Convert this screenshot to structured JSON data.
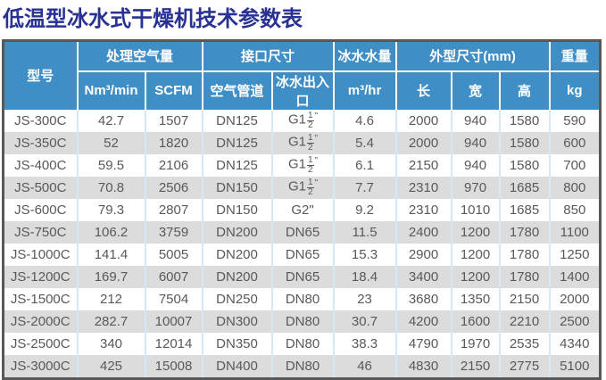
{
  "title": "低温型冰水式干燥机技术参数表",
  "colors": {
    "title_text": "#293293",
    "header_bg": "#3f8ec6",
    "header_text": "#ffffff",
    "row_alt_bg": "#dcdcdc",
    "cell_divider": "#d5e8f6",
    "outer_border": "#58585b",
    "data_text": "#58595b"
  },
  "chart_data": {
    "type": "table",
    "title": "低温型冰水式干燥机技术参数表",
    "header_groups": [
      {
        "label": "型号",
        "rowspan": 2
      },
      {
        "label": "处理空气量",
        "colspan": 2
      },
      {
        "label": "接口尺寸",
        "colspan": 2
      },
      {
        "label": "冰水水量",
        "colspan": 1
      },
      {
        "label": "外型尺寸(mm)",
        "colspan": 3
      },
      {
        "label": "重量",
        "colspan": 1
      }
    ],
    "columns": [
      "型号",
      "Nm³/min",
      "SCFM",
      "空气管道",
      "冰水出入口",
      "m³/hr",
      "长",
      "宽",
      "高",
      "kg"
    ],
    "rows": [
      [
        "JS-300C",
        "42.7",
        "1507",
        "DN125",
        {
          "pre": "G1",
          "num": "1",
          "den": "2",
          "suf": "\""
        },
        "4.6",
        "2000",
        "940",
        "1580",
        "590"
      ],
      [
        "JS-350C",
        "52",
        "1820",
        "DN125",
        {
          "pre": "G1",
          "num": "1",
          "den": "2",
          "suf": "\""
        },
        "5.4",
        "2000",
        "940",
        "1580",
        "600"
      ],
      [
        "JS-400C",
        "59.5",
        "2106",
        "DN125",
        {
          "pre": "G1",
          "num": "1",
          "den": "2",
          "suf": "\""
        },
        "6.1",
        "2150",
        "940",
        "1580",
        "700"
      ],
      [
        "JS-500C",
        "70.8",
        "2506",
        "DN150",
        {
          "pre": "G1",
          "num": "1",
          "den": "2",
          "suf": "\""
        },
        "7.7",
        "2310",
        "970",
        "1685",
        "800"
      ],
      [
        "JS-600C",
        "79.3",
        "2807",
        "DN150",
        "G2\"",
        "9.2",
        "2310",
        "1010",
        "1685",
        "850"
      ],
      [
        "JS-750C",
        "106.2",
        "3759",
        "DN200",
        "DN65",
        "11.5",
        "2400",
        "1200",
        "1780",
        "1100"
      ],
      [
        "JS-1000C",
        "141.4",
        "5005",
        "DN200",
        "DN65",
        "15.3",
        "2900",
        "1200",
        "1780",
        "1250"
      ],
      [
        "JS-1200C",
        "169.7",
        "6007",
        "DN200",
        "DN65",
        "18.4",
        "3400",
        "1200",
        "1780",
        "1400"
      ],
      [
        "JS-1500C",
        "212",
        "7504",
        "DN250",
        "DN80",
        "23",
        "3680",
        "1350",
        "2150",
        "2000"
      ],
      [
        "JS-2000C",
        "282.7",
        "10007",
        "DN300",
        "DN80",
        "30.7",
        "4200",
        "1600",
        "2210",
        "2500"
      ],
      [
        "JS-2500C",
        "340",
        "12014",
        "DN350",
        "DN80",
        "38.3",
        "4790",
        "1970",
        "2535",
        "4340"
      ],
      [
        "JS-3000C",
        "425",
        "15008",
        "DN400",
        "DN80",
        "46",
        "4830",
        "2150",
        "2775",
        "5100"
      ]
    ]
  }
}
